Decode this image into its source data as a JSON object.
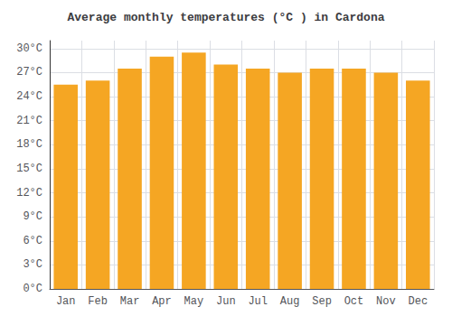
{
  "chart_data": {
    "type": "bar",
    "title": "Average monthly temperatures (°C ) in Cardona",
    "categories": [
      "Jan",
      "Feb",
      "Mar",
      "Apr",
      "May",
      "Jun",
      "Jul",
      "Aug",
      "Sep",
      "Oct",
      "Nov",
      "Dec"
    ],
    "values": [
      25.5,
      26.0,
      27.5,
      29.0,
      29.5,
      28.0,
      27.5,
      27.0,
      27.5,
      27.5,
      27.0,
      26.0
    ],
    "color": "#F5A623",
    "ylim": [
      0,
      31
    ],
    "yticks": [
      {
        "value": 0,
        "label": "0°C"
      },
      {
        "value": 3,
        "label": "3°C"
      },
      {
        "value": 6,
        "label": "6°C"
      },
      {
        "value": 9,
        "label": "9°C"
      },
      {
        "value": 12,
        "label": "12°C"
      },
      {
        "value": 15,
        "label": "15°C"
      },
      {
        "value": 18,
        "label": "18°C"
      },
      {
        "value": 21,
        "label": "21°C"
      },
      {
        "value": 24,
        "label": "24°C"
      },
      {
        "value": 27,
        "label": "27°C"
      },
      {
        "value": 30,
        "label": "30°C"
      }
    ],
    "grid": true
  }
}
